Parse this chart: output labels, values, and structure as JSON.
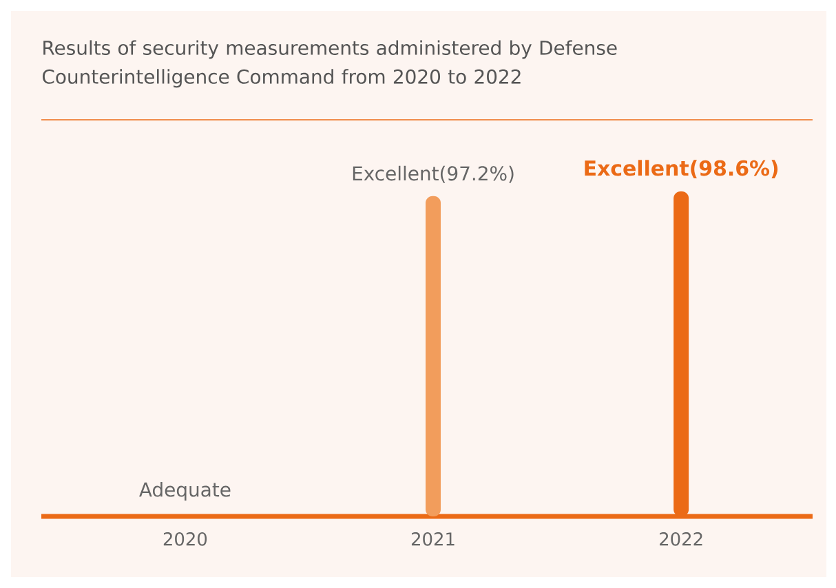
{
  "chart_data": {
    "type": "bar",
    "title": "Results of security measurements administered by Defense Counterintelligence Command from 2020 to 2022",
    "categories": [
      "2020",
      "2021",
      "2022"
    ],
    "values": [
      null,
      97.2,
      98.6
    ],
    "value_labels": [
      "Adequate",
      "Excellent(97.2%)",
      "Excellent(98.6%)"
    ],
    "colors": [
      "#eb6a16",
      "#f29d5c",
      "#eb6a16"
    ],
    "tick_labels": "x"
  }
}
